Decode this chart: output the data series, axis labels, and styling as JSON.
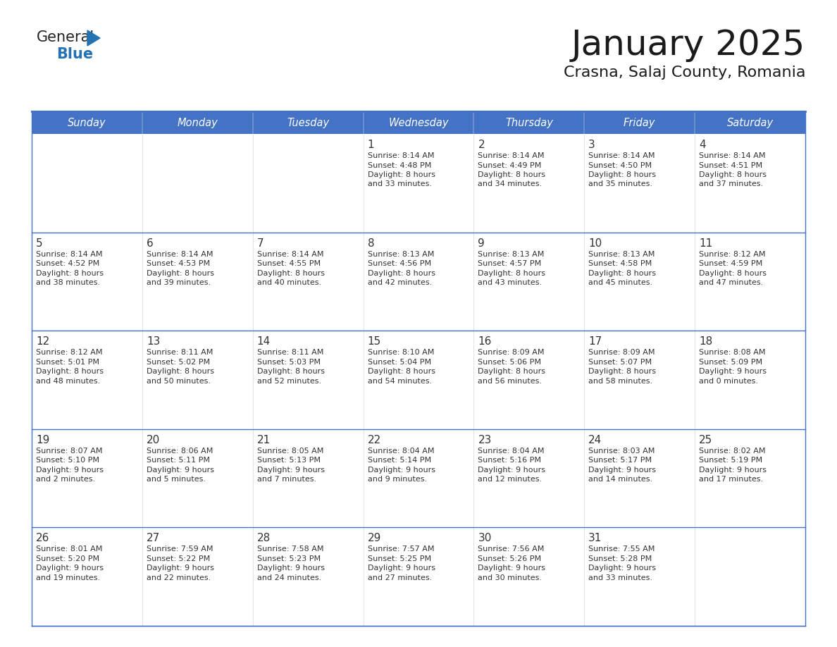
{
  "title": "January 2025",
  "subtitle": "Crasna, Salaj County, Romania",
  "header_bg_color": "#4472C4",
  "header_text_color": "#FFFFFF",
  "cell_bg_color_light": "#F2F2F2",
  "cell_bg_color_white": "#FFFFFF",
  "cell_border_color": "#4472C4",
  "row_divider_color": "#4472C4",
  "day_number_color": "#333333",
  "cell_text_color": "#333333",
  "days_of_week": [
    "Sunday",
    "Monday",
    "Tuesday",
    "Wednesday",
    "Thursday",
    "Friday",
    "Saturday"
  ],
  "title_color": "#1a1a1a",
  "subtitle_color": "#1a1a1a",
  "logo_general_color": "#222222",
  "logo_blue_color": "#2472B3",
  "calendar_data": [
    [
      {
        "day": "",
        "lines": []
      },
      {
        "day": "",
        "lines": []
      },
      {
        "day": "",
        "lines": []
      },
      {
        "day": "1",
        "lines": [
          "Sunrise: 8:14 AM",
          "Sunset: 4:48 PM",
          "Daylight: 8 hours",
          "and 33 minutes."
        ]
      },
      {
        "day": "2",
        "lines": [
          "Sunrise: 8:14 AM",
          "Sunset: 4:49 PM",
          "Daylight: 8 hours",
          "and 34 minutes."
        ]
      },
      {
        "day": "3",
        "lines": [
          "Sunrise: 8:14 AM",
          "Sunset: 4:50 PM",
          "Daylight: 8 hours",
          "and 35 minutes."
        ]
      },
      {
        "day": "4",
        "lines": [
          "Sunrise: 8:14 AM",
          "Sunset: 4:51 PM",
          "Daylight: 8 hours",
          "and 37 minutes."
        ]
      }
    ],
    [
      {
        "day": "5",
        "lines": [
          "Sunrise: 8:14 AM",
          "Sunset: 4:52 PM",
          "Daylight: 8 hours",
          "and 38 minutes."
        ]
      },
      {
        "day": "6",
        "lines": [
          "Sunrise: 8:14 AM",
          "Sunset: 4:53 PM",
          "Daylight: 8 hours",
          "and 39 minutes."
        ]
      },
      {
        "day": "7",
        "lines": [
          "Sunrise: 8:14 AM",
          "Sunset: 4:55 PM",
          "Daylight: 8 hours",
          "and 40 minutes."
        ]
      },
      {
        "day": "8",
        "lines": [
          "Sunrise: 8:13 AM",
          "Sunset: 4:56 PM",
          "Daylight: 8 hours",
          "and 42 minutes."
        ]
      },
      {
        "day": "9",
        "lines": [
          "Sunrise: 8:13 AM",
          "Sunset: 4:57 PM",
          "Daylight: 8 hours",
          "and 43 minutes."
        ]
      },
      {
        "day": "10",
        "lines": [
          "Sunrise: 8:13 AM",
          "Sunset: 4:58 PM",
          "Daylight: 8 hours",
          "and 45 minutes."
        ]
      },
      {
        "day": "11",
        "lines": [
          "Sunrise: 8:12 AM",
          "Sunset: 4:59 PM",
          "Daylight: 8 hours",
          "and 47 minutes."
        ]
      }
    ],
    [
      {
        "day": "12",
        "lines": [
          "Sunrise: 8:12 AM",
          "Sunset: 5:01 PM",
          "Daylight: 8 hours",
          "and 48 minutes."
        ]
      },
      {
        "day": "13",
        "lines": [
          "Sunrise: 8:11 AM",
          "Sunset: 5:02 PM",
          "Daylight: 8 hours",
          "and 50 minutes."
        ]
      },
      {
        "day": "14",
        "lines": [
          "Sunrise: 8:11 AM",
          "Sunset: 5:03 PM",
          "Daylight: 8 hours",
          "and 52 minutes."
        ]
      },
      {
        "day": "15",
        "lines": [
          "Sunrise: 8:10 AM",
          "Sunset: 5:04 PM",
          "Daylight: 8 hours",
          "and 54 minutes."
        ]
      },
      {
        "day": "16",
        "lines": [
          "Sunrise: 8:09 AM",
          "Sunset: 5:06 PM",
          "Daylight: 8 hours",
          "and 56 minutes."
        ]
      },
      {
        "day": "17",
        "lines": [
          "Sunrise: 8:09 AM",
          "Sunset: 5:07 PM",
          "Daylight: 8 hours",
          "and 58 minutes."
        ]
      },
      {
        "day": "18",
        "lines": [
          "Sunrise: 8:08 AM",
          "Sunset: 5:09 PM",
          "Daylight: 9 hours",
          "and 0 minutes."
        ]
      }
    ],
    [
      {
        "day": "19",
        "lines": [
          "Sunrise: 8:07 AM",
          "Sunset: 5:10 PM",
          "Daylight: 9 hours",
          "and 2 minutes."
        ]
      },
      {
        "day": "20",
        "lines": [
          "Sunrise: 8:06 AM",
          "Sunset: 5:11 PM",
          "Daylight: 9 hours",
          "and 5 minutes."
        ]
      },
      {
        "day": "21",
        "lines": [
          "Sunrise: 8:05 AM",
          "Sunset: 5:13 PM",
          "Daylight: 9 hours",
          "and 7 minutes."
        ]
      },
      {
        "day": "22",
        "lines": [
          "Sunrise: 8:04 AM",
          "Sunset: 5:14 PM",
          "Daylight: 9 hours",
          "and 9 minutes."
        ]
      },
      {
        "day": "23",
        "lines": [
          "Sunrise: 8:04 AM",
          "Sunset: 5:16 PM",
          "Daylight: 9 hours",
          "and 12 minutes."
        ]
      },
      {
        "day": "24",
        "lines": [
          "Sunrise: 8:03 AM",
          "Sunset: 5:17 PM",
          "Daylight: 9 hours",
          "and 14 minutes."
        ]
      },
      {
        "day": "25",
        "lines": [
          "Sunrise: 8:02 AM",
          "Sunset: 5:19 PM",
          "Daylight: 9 hours",
          "and 17 minutes."
        ]
      }
    ],
    [
      {
        "day": "26",
        "lines": [
          "Sunrise: 8:01 AM",
          "Sunset: 5:20 PM",
          "Daylight: 9 hours",
          "and 19 minutes."
        ]
      },
      {
        "day": "27",
        "lines": [
          "Sunrise: 7:59 AM",
          "Sunset: 5:22 PM",
          "Daylight: 9 hours",
          "and 22 minutes."
        ]
      },
      {
        "day": "28",
        "lines": [
          "Sunrise: 7:58 AM",
          "Sunset: 5:23 PM",
          "Daylight: 9 hours",
          "and 24 minutes."
        ]
      },
      {
        "day": "29",
        "lines": [
          "Sunrise: 7:57 AM",
          "Sunset: 5:25 PM",
          "Daylight: 9 hours",
          "and 27 minutes."
        ]
      },
      {
        "day": "30",
        "lines": [
          "Sunrise: 7:56 AM",
          "Sunset: 5:26 PM",
          "Daylight: 9 hours",
          "and 30 minutes."
        ]
      },
      {
        "day": "31",
        "lines": [
          "Sunrise: 7:55 AM",
          "Sunset: 5:28 PM",
          "Daylight: 9 hours",
          "and 33 minutes."
        ]
      },
      {
        "day": "",
        "lines": []
      }
    ]
  ]
}
